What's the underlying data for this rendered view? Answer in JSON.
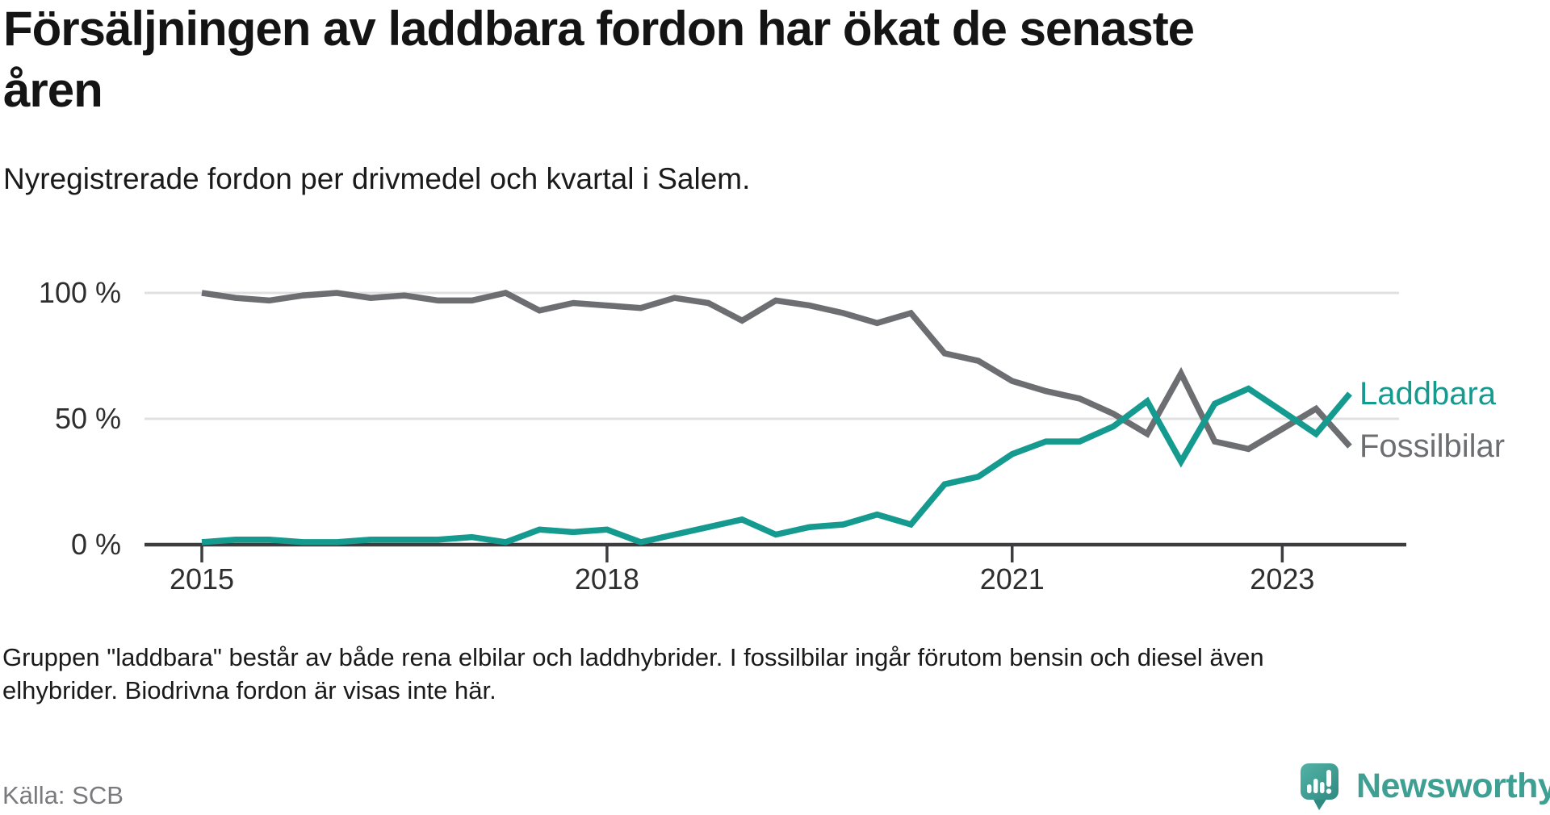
{
  "title": {
    "line1": "Försäljningen av laddbara fordon har ökat de senaste",
    "line2": "åren"
  },
  "subtitle": "Nyregistrerade fordon per drivmedel och kvartal i Salem.",
  "footnote": {
    "line1": "Gruppen \"laddbara\" består av både rena elbilar och laddhybrider. I fossilbilar ingår förutom bensin och diesel även",
    "line2": "elhybrider. Biodrivna fordon är visas inte här."
  },
  "source": "Källa: SCB",
  "logo": {
    "text": "Newsworthy",
    "icon": "newsworthy-speech-bubble-chart-icon"
  },
  "colors": {
    "laddbara": "#149a8f",
    "fossilbilar": "#6d6e72",
    "gridline": "#e0e0e0",
    "axis": "#3d3d40",
    "logo_teal": "#3da092",
    "logo_gradient_start": "#53b2a6",
    "logo_gradient_end": "#2f8b81"
  },
  "chart_data": {
    "type": "line",
    "title": "Försäljningen av laddbara fordon har ökat de senaste åren",
    "subtitle": "Nyregistrerade fordon per drivmedel och kvartal i Salem.",
    "unit": "%",
    "ylim": [
      0,
      100
    ],
    "y_gridlines": [
      100,
      50
    ],
    "y_tick_labels": [
      "100 %",
      "50 %",
      "0 %"
    ],
    "y_tick_values": [
      100,
      50,
      0
    ],
    "grid": "horizontal-only",
    "legend_position": "right-of-line-ends",
    "x": [
      "2015Q1",
      "2015Q2",
      "2015Q3",
      "2015Q4",
      "2016Q1",
      "2016Q2",
      "2016Q3",
      "2016Q4",
      "2017Q1",
      "2017Q2",
      "2017Q3",
      "2017Q4",
      "2018Q1",
      "2018Q2",
      "2018Q3",
      "2018Q4",
      "2019Q1",
      "2019Q2",
      "2019Q3",
      "2019Q4",
      "2020Q1",
      "2020Q2",
      "2020Q3",
      "2020Q4",
      "2021Q1",
      "2021Q2",
      "2021Q3",
      "2021Q4",
      "2022Q1",
      "2022Q2",
      "2022Q3",
      "2022Q4",
      "2023Q1",
      "2023Q2",
      "2023Q3"
    ],
    "x_tick_labels": [
      "2015",
      "2018",
      "2021",
      "2023"
    ],
    "x_tick_quarters": [
      "2015Q1",
      "2018Q1",
      "2021Q1",
      "2023Q1"
    ],
    "series": [
      {
        "name": "Fossilbilar",
        "color": "#6d6e72",
        "values": [
          100,
          98,
          97,
          99,
          100,
          98,
          99,
          97,
          97,
          100,
          93,
          96,
          95,
          94,
          98,
          96,
          89,
          97,
          95,
          92,
          88,
          92,
          76,
          73,
          65,
          61,
          58,
          52,
          44,
          68,
          41,
          38,
          46,
          54,
          39
        ]
      },
      {
        "name": "Laddbara",
        "color": "#149a8f",
        "values": [
          1,
          2,
          2,
          1,
          1,
          2,
          2,
          2,
          3,
          1,
          6,
          5,
          6,
          1,
          4,
          7,
          10,
          4,
          7,
          8,
          12,
          8,
          24,
          27,
          36,
          41,
          41,
          47,
          57,
          33,
          56,
          62,
          53,
          44,
          60
        ]
      }
    ]
  }
}
